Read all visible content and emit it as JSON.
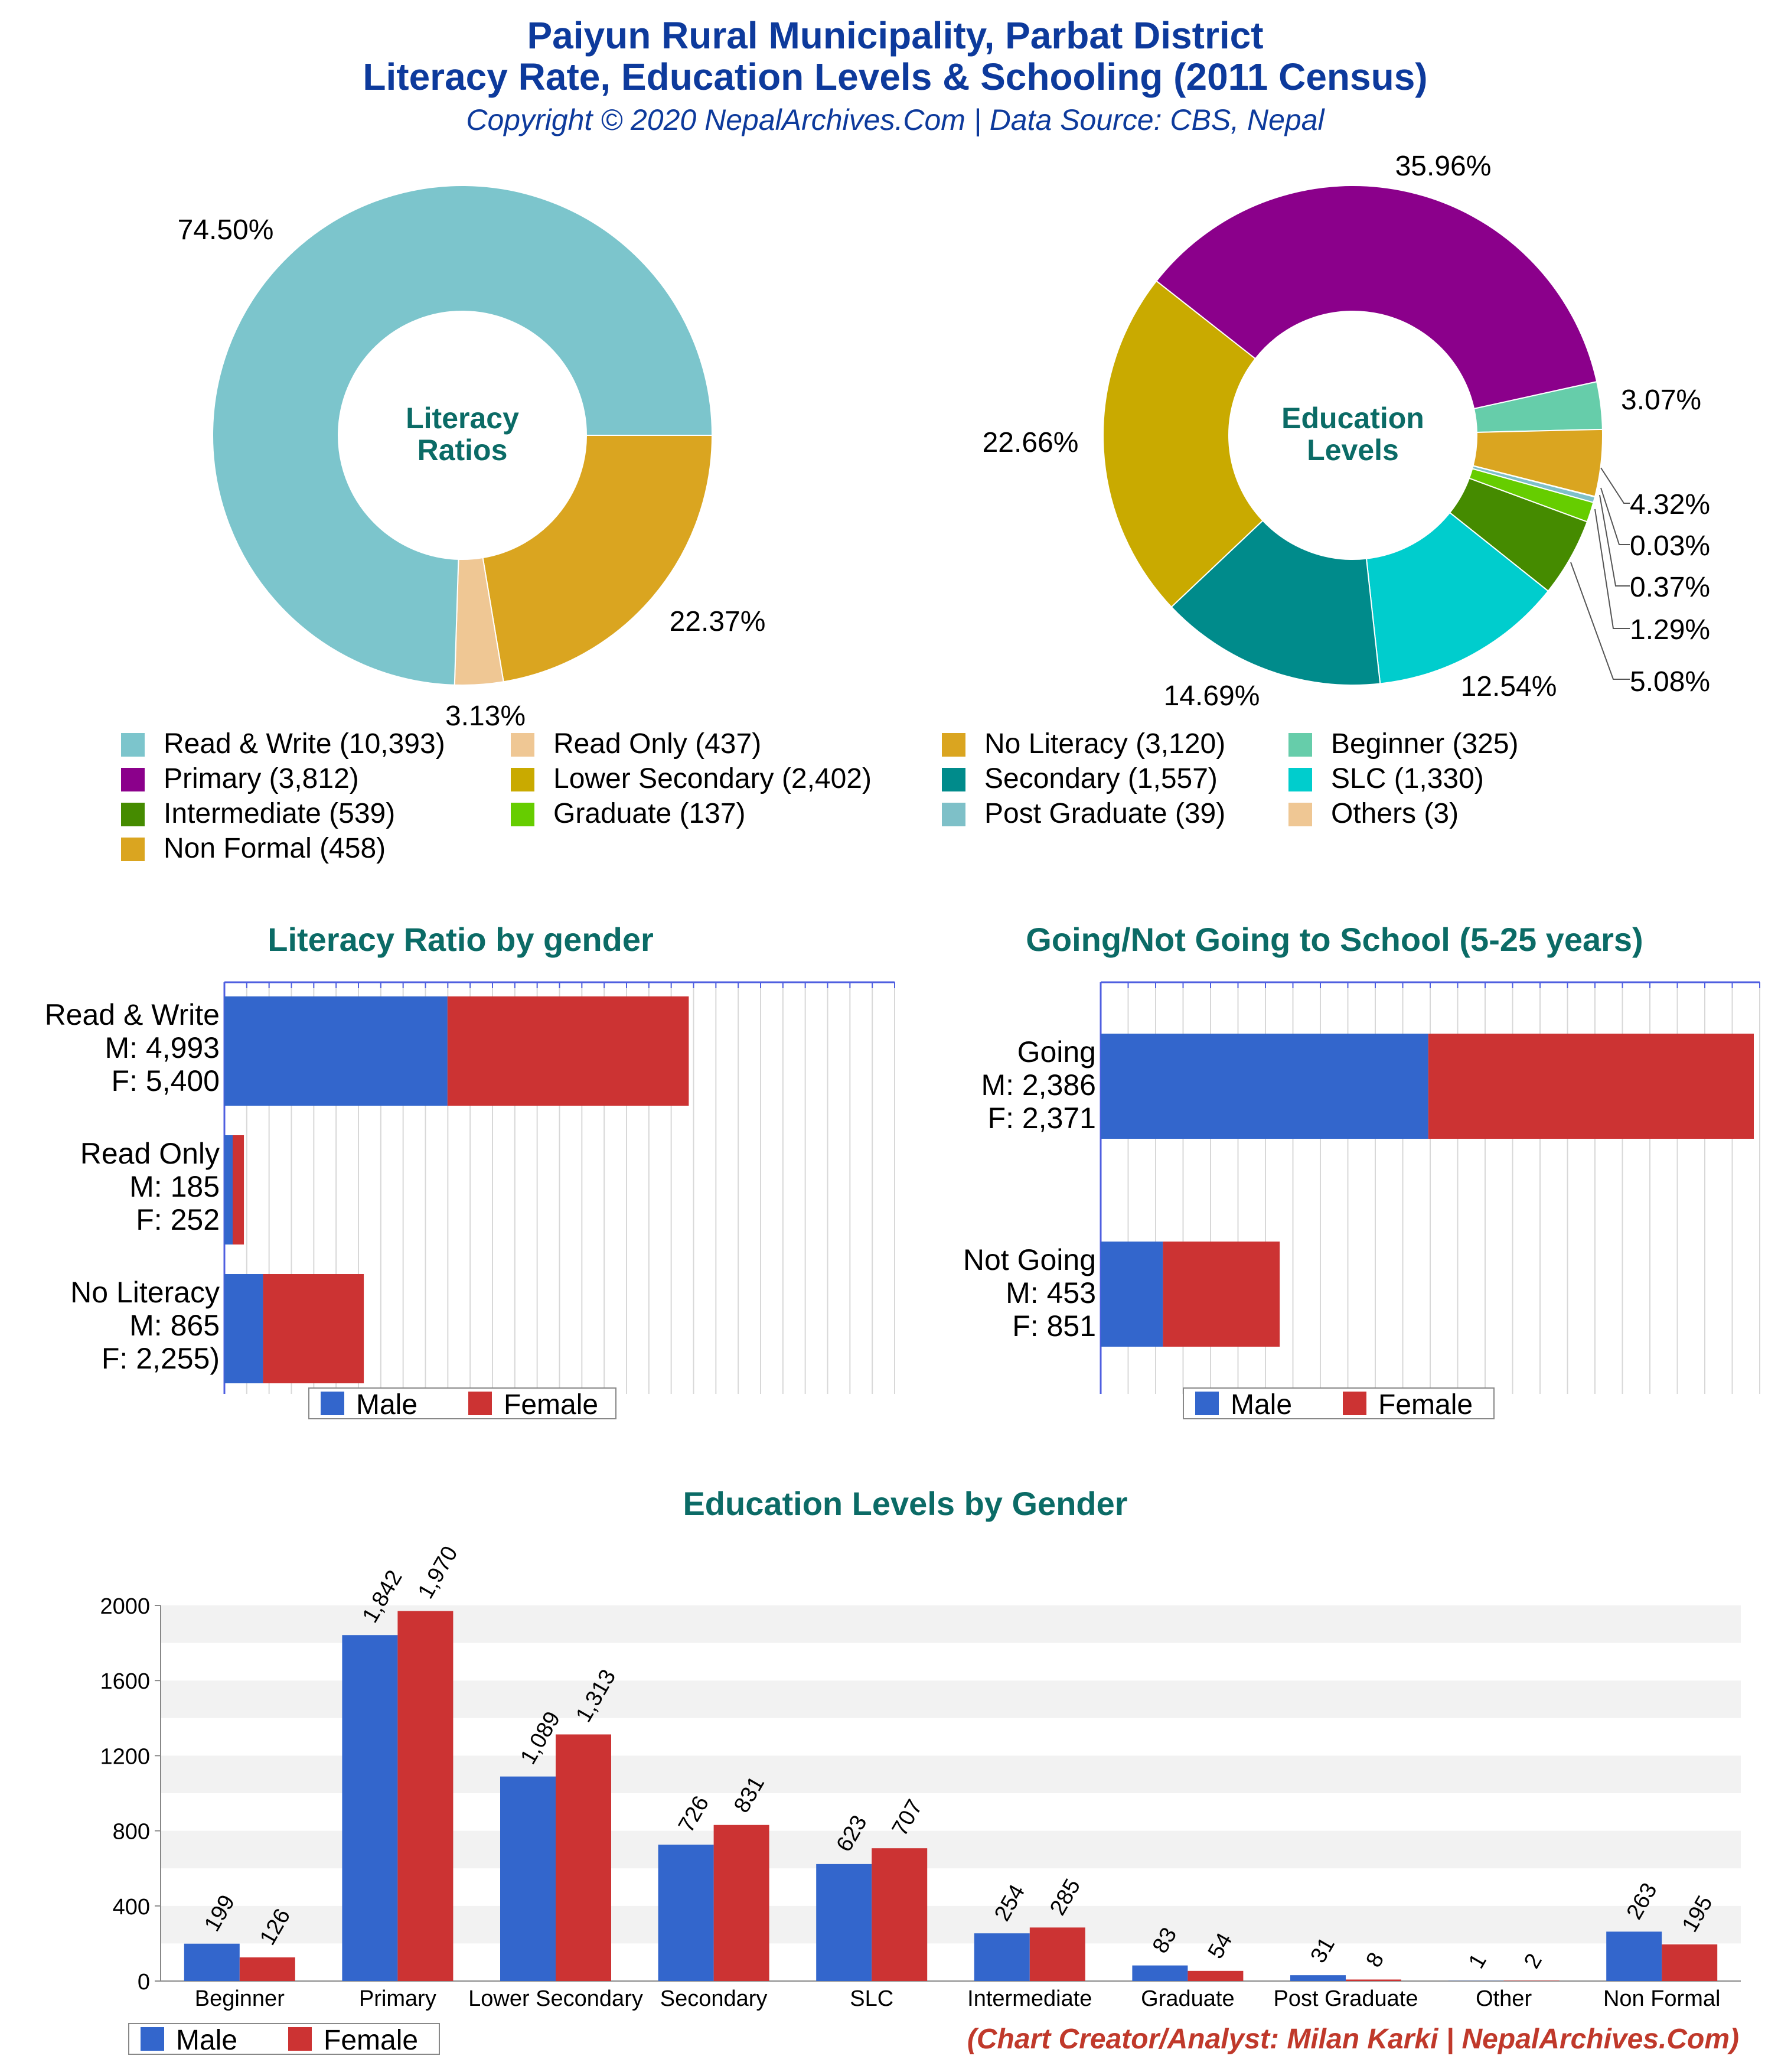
{
  "header": {
    "title_line1": "Paiyun Rural Municipality, Parbat District",
    "title_line2": "Literacy Rate, Education Levels & Schooling (2011 Census)",
    "copyright": "Copyright © 2020 NepalArchives.Com | Data Source: CBS, Nepal"
  },
  "colors": {
    "title": "#0d3a9c",
    "section_title": "#0b6b66",
    "male": "#3366cc",
    "female": "#cc3333",
    "credit": "#c0392b"
  },
  "legend": {
    "items": [
      {
        "label": "Read & Write (10,393)",
        "color": "#7cc5cc"
      },
      {
        "label": "Read Only (437)",
        "color": "#efc794"
      },
      {
        "label": "No Literacy (3,120)",
        "color": "#daa520"
      },
      {
        "label": "Beginner (325)",
        "color": "#66cdaa"
      },
      {
        "label": "Primary (3,812)",
        "color": "#8b008b"
      },
      {
        "label": "Lower Secondary (2,402)",
        "color": "#c9aa00"
      },
      {
        "label": "Secondary (1,557)",
        "color": "#008b8b"
      },
      {
        "label": "SLC (1,330)",
        "color": "#00cdcd"
      },
      {
        "label": "Intermediate (539)",
        "color": "#458b00"
      },
      {
        "label": "Graduate (137)",
        "color": "#66cd00"
      },
      {
        "label": "Post Graduate (39)",
        "color": "#7ec0c8"
      },
      {
        "label": "Others (3)",
        "color": "#efc794"
      },
      {
        "label": "Non Formal (458)",
        "color": "#daa520"
      }
    ]
  },
  "chart_data": [
    {
      "type": "pie",
      "center_label": [
        "Literacy",
        "Ratios"
      ],
      "slices": [
        {
          "label": "No Literacy",
          "value": 3120,
          "pct_label": "22.37%",
          "color": "#daa520"
        },
        {
          "label": "Read Only",
          "value": 437,
          "pct_label": "3.13%",
          "color": "#efc794"
        },
        {
          "label": "Read & Write",
          "value": 10393,
          "pct_label": "74.50%",
          "color": "#7cc5cc"
        }
      ]
    },
    {
      "type": "pie",
      "center_label": [
        "Education",
        "Levels"
      ],
      "slices": [
        {
          "label": "Beginner",
          "value": 325,
          "pct_label": "3.07%",
          "color": "#66cdaa"
        },
        {
          "label": "Non Formal",
          "value": 458,
          "pct_label": "4.32%",
          "color": "#daa520"
        },
        {
          "label": "Others",
          "value": 3,
          "pct_label": "0.03%",
          "color": "#efc794"
        },
        {
          "label": "Post Graduate",
          "value": 39,
          "pct_label": "0.37%",
          "color": "#7ec0c8"
        },
        {
          "label": "Graduate",
          "value": 137,
          "pct_label": "1.29%",
          "color": "#66cd00"
        },
        {
          "label": "Intermediate",
          "value": 539,
          "pct_label": "5.08%",
          "color": "#458b00"
        },
        {
          "label": "SLC",
          "value": 1330,
          "pct_label": "12.54%",
          "color": "#00cdcd"
        },
        {
          "label": "Secondary",
          "value": 1557,
          "pct_label": "14.69%",
          "color": "#008b8b"
        },
        {
          "label": "Lower Secondary",
          "value": 2402,
          "pct_label": "22.66%",
          "color": "#c9aa00"
        },
        {
          "label": "Primary",
          "value": 3812,
          "pct_label": "35.96%",
          "color": "#8b008b"
        }
      ]
    },
    {
      "type": "bar",
      "orientation": "horizontal",
      "stacked": true,
      "title": "Literacy Ratio by gender",
      "categories": [
        {
          "lines": [
            "Read & Write",
            "M: 4,993",
            "F: 5,400"
          ]
        },
        {
          "lines": [
            "Read Only",
            "M: 185",
            "F: 252"
          ]
        },
        {
          "lines": [
            "No Literacy",
            "M: 865",
            "F: 2,255)"
          ]
        }
      ],
      "series": [
        {
          "name": "Male",
          "values": [
            4993,
            185,
            865
          ]
        },
        {
          "name": "Female",
          "values": [
            5400,
            252,
            2255
          ]
        }
      ],
      "xlim": [
        0,
        15000
      ],
      "legend": [
        "Male",
        "Female"
      ]
    },
    {
      "type": "bar",
      "orientation": "horizontal",
      "stacked": true,
      "title": "Going/Not Going to School (5-25 years)",
      "categories": [
        {
          "lines": [
            "Going",
            "M: 2,386",
            "F: 2,371"
          ]
        },
        {
          "lines": [
            "Not Going",
            "M: 453",
            "F: 851"
          ]
        }
      ],
      "series": [
        {
          "name": "Male",
          "values": [
            2386,
            453
          ]
        },
        {
          "name": "Female",
          "values": [
            2371,
            851
          ]
        }
      ],
      "xlim": [
        0,
        4800
      ],
      "legend": [
        "Male",
        "Female"
      ]
    },
    {
      "type": "bar",
      "title": "Education Levels by Gender",
      "categories": [
        "Beginner",
        "Primary",
        "Lower Secondary",
        "Secondary",
        "SLC",
        "Intermediate",
        "Graduate",
        "Post Graduate",
        "Other",
        "Non Formal"
      ],
      "series": [
        {
          "name": "Male",
          "values": [
            199,
            1842,
            1089,
            726,
            623,
            254,
            83,
            31,
            1,
            263
          ],
          "labels": [
            "199",
            "1,842",
            "1,089",
            "726",
            "623",
            "254",
            "83",
            "31",
            "1",
            "263"
          ]
        },
        {
          "name": "Female",
          "values": [
            126,
            1970,
            1313,
            831,
            707,
            285,
            54,
            8,
            2,
            195
          ],
          "labels": [
            "126",
            "1,970",
            "1,313",
            "831",
            "707",
            "285",
            "54",
            "8",
            "2",
            "195"
          ]
        }
      ],
      "ylim": [
        0,
        2000
      ],
      "yticks": [
        "0",
        "400",
        "800",
        "1200",
        "1600",
        "2000"
      ],
      "legend": [
        "Male",
        "Female"
      ]
    }
  ],
  "credit": "(Chart Creator/Analyst: Milan Karki | NepalArchives.Com)"
}
